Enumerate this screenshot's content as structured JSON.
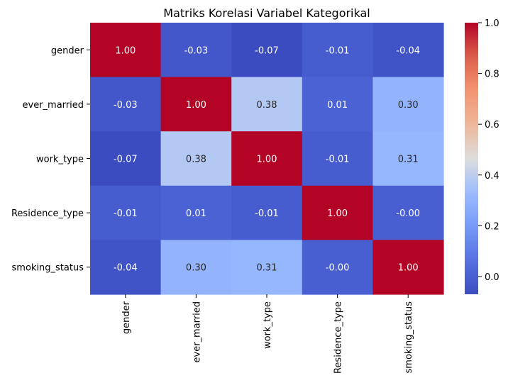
{
  "chart_data": {
    "type": "heatmap",
    "title": "Matriks Korelasi Variabel Kategorikal",
    "xlabel": "",
    "ylabel": "",
    "x_categories": [
      "gender",
      "ever_married",
      "work_type",
      "Residence_type",
      "smoking_status"
    ],
    "y_categories": [
      "gender",
      "ever_married",
      "work_type",
      "Residence_type",
      "smoking_status"
    ],
    "values": [
      [
        1.0,
        -0.03,
        -0.07,
        -0.01,
        -0.04
      ],
      [
        -0.03,
        1.0,
        0.38,
        0.01,
        0.3
      ],
      [
        -0.07,
        0.38,
        1.0,
        -0.01,
        0.31
      ],
      [
        -0.01,
        0.01,
        -0.01,
        1.0,
        -0.0
      ],
      [
        -0.04,
        0.3,
        0.31,
        -0.0,
        1.0
      ]
    ],
    "value_labels": [
      [
        "1.00",
        "-0.03",
        "-0.07",
        "-0.01",
        "-0.04"
      ],
      [
        "-0.03",
        "1.00",
        "0.38",
        "0.01",
        "0.30"
      ],
      [
        "-0.07",
        "0.38",
        "1.00",
        "-0.01",
        "0.31"
      ],
      [
        "-0.01",
        "0.01",
        "-0.01",
        "1.00",
        "-0.00"
      ],
      [
        "-0.04",
        "0.30",
        "0.31",
        "-0.00",
        "1.00"
      ]
    ],
    "colormap": "coolwarm",
    "colorbar": {
      "range": [
        -0.07,
        1.0
      ],
      "ticks": [
        0.0,
        0.2,
        0.4,
        0.6,
        0.8,
        1.0
      ],
      "tick_labels": [
        "0.0",
        "0.2",
        "0.4",
        "0.6",
        "0.8",
        "1.0"
      ]
    }
  }
}
